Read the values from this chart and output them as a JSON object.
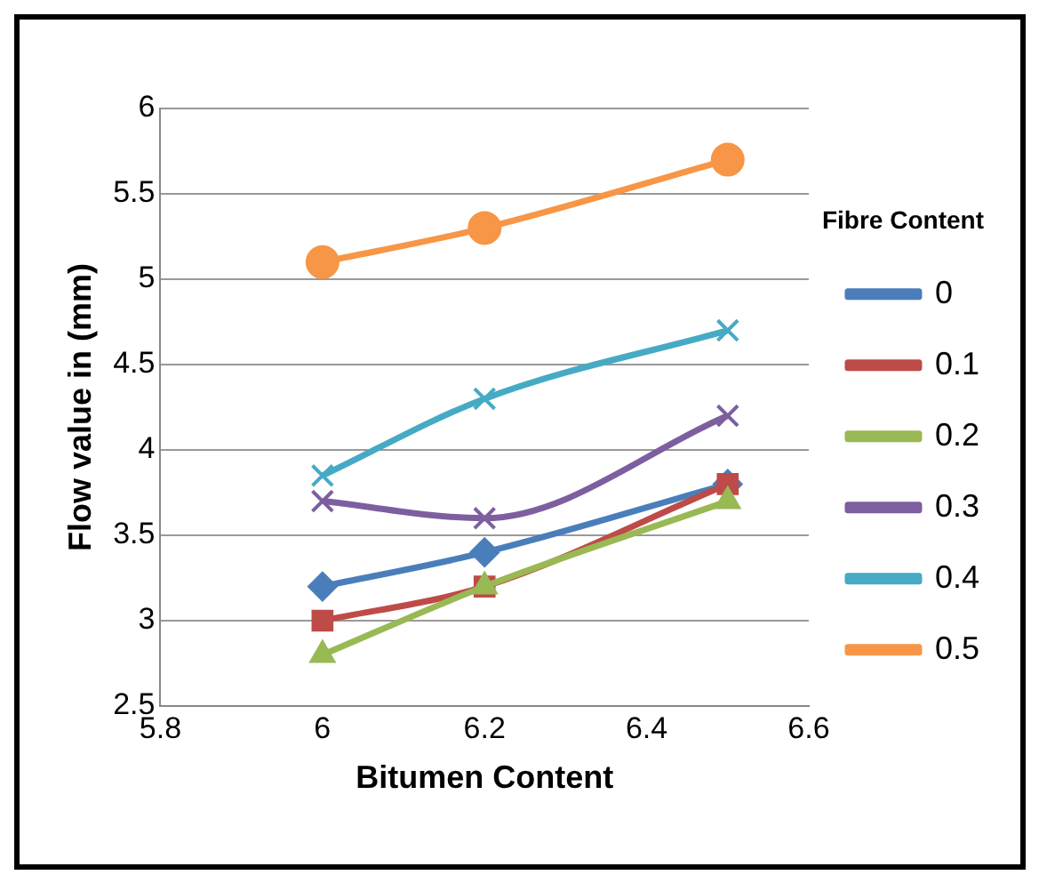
{
  "chart_data": {
    "type": "line",
    "xlabel": "Bitumen Content",
    "ylabel": "Flow value in (mm)",
    "legend_title": "Fibre Content",
    "x": [
      6,
      6.2,
      6.5
    ],
    "series": [
      {
        "name": "0",
        "color": "#4a7ebb",
        "marker": "diamond",
        "values": [
          3.2,
          3.4,
          3.8
        ]
      },
      {
        "name": "0.1",
        "color": "#be4b48",
        "marker": "square",
        "values": [
          3.0,
          3.2,
          3.8
        ]
      },
      {
        "name": "0.2",
        "color": "#98b954",
        "marker": "triangle",
        "values": [
          2.8,
          3.2,
          3.7
        ]
      },
      {
        "name": "0.3",
        "color": "#7d5fa0",
        "marker": "cross",
        "values": [
          3.7,
          3.6,
          4.2
        ]
      },
      {
        "name": "0.4",
        "color": "#46aac5",
        "marker": "cross",
        "values": [
          3.85,
          4.3,
          4.7
        ]
      },
      {
        "name": "0.5",
        "color": "#f79646",
        "marker": "circle",
        "values": [
          5.1,
          5.3,
          5.7
        ]
      }
    ],
    "xlim": [
      5.8,
      6.6
    ],
    "xticks": [
      5.8,
      6,
      6.2,
      6.4,
      6.6
    ],
    "ylim": [
      2.5,
      6
    ],
    "yticks": [
      2.5,
      3,
      3.5,
      4,
      4.5,
      5,
      5.5,
      6
    ],
    "grid": "y",
    "legend": "right",
    "line_style": "solid"
  }
}
